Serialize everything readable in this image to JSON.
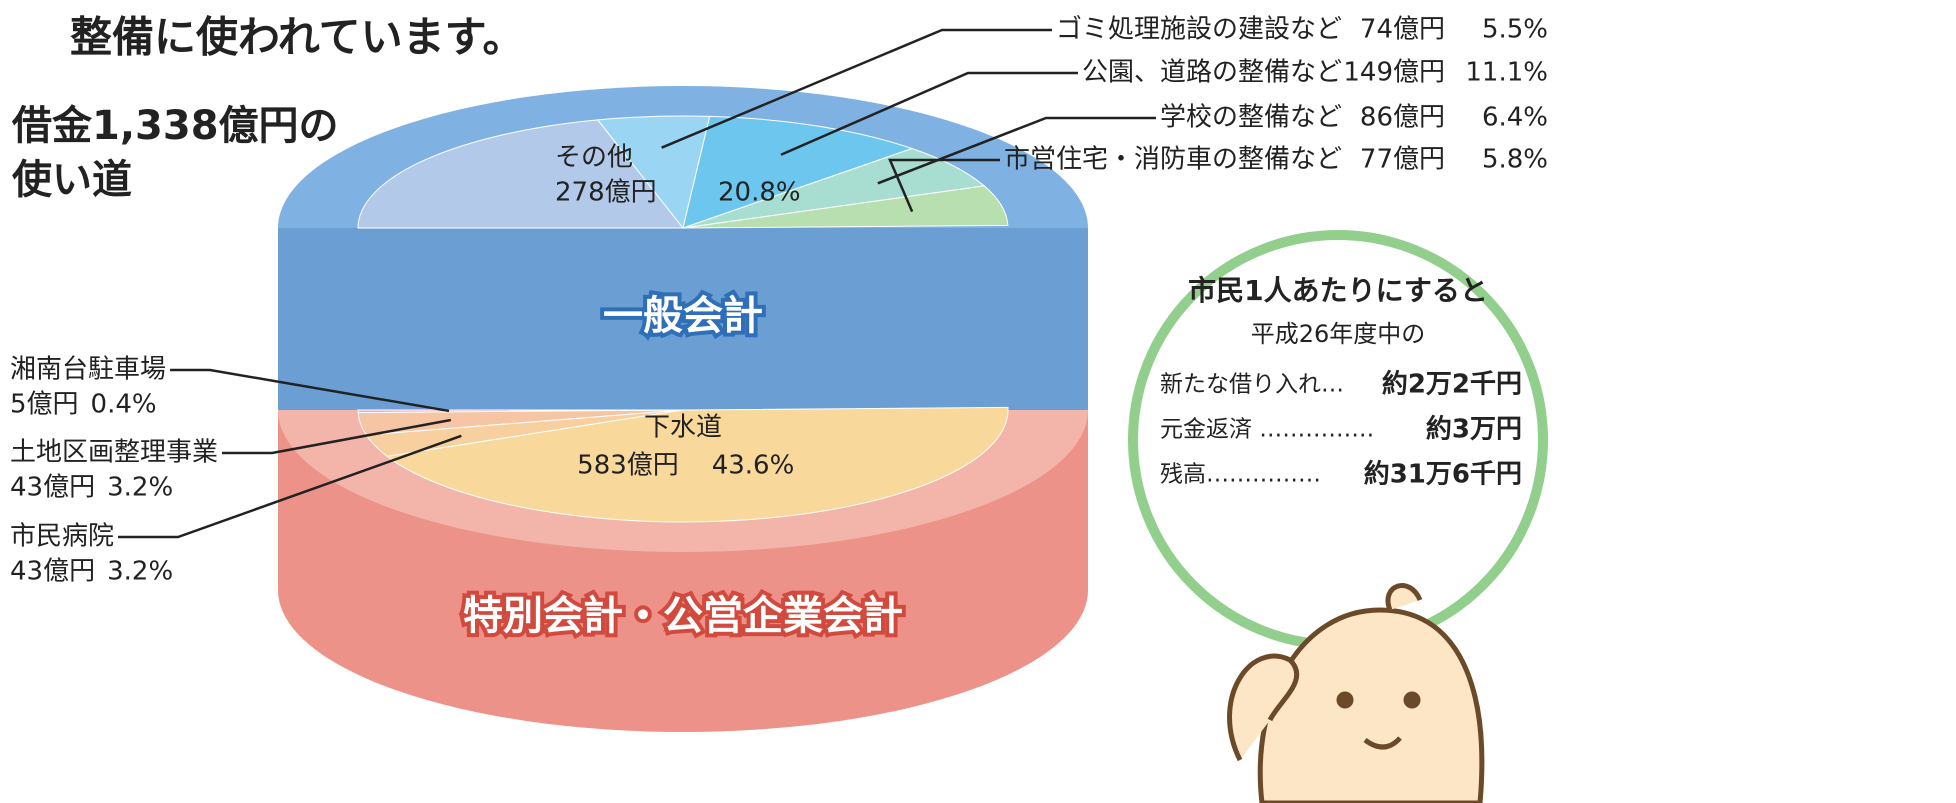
{
  "chart_data": {
    "type": "pie",
    "title": "整備に使われています。",
    "subtitle": [
      "借金1,338億円の",
      "使い道"
    ],
    "groups": [
      {
        "name": "一般会計",
        "color": "#6b9fd4",
        "top_color": "#7fb1e2",
        "labels": [
          "その他",
          "ゴミ処理施設の建設など",
          "公園、道路の整備など",
          "学校の整備など",
          "市営住宅・消防車の整備など"
        ],
        "values": [
          278,
          74,
          149,
          86,
          77
        ],
        "value_labels": [
          "278億円",
          "74億円",
          "149億円",
          "86億円",
          "77億円"
        ],
        "percents": [
          {
            "value": 20.8,
            "label": "20.8%"
          },
          {
            "value": 5.5,
            "label": "5.5%"
          },
          {
            "value": 11.1,
            "label": "11.1%"
          },
          {
            "value": 6.4,
            "label": "6.4%"
          },
          {
            "value": 5.8,
            "label": "5.8%"
          }
        ],
        "colors": [
          "#b3c9ea",
          "#9ad6f3",
          "#6cc6ee",
          "#a8ddd2",
          "#b8dfb0"
        ]
      },
      {
        "name": "特別会計・公営企業会計",
        "color": "#ec9288",
        "top_color": "#f3b4aa",
        "labels": [
          "湘南台駐車場",
          "土地区画整理事業",
          "市民病院",
          "下水道"
        ],
        "values": [
          5,
          43,
          43,
          583
        ],
        "value_labels": [
          "5億円",
          "43億円",
          "43億円",
          "583億円"
        ],
        "percents": [
          {
            "value": 0.4,
            "label": "0.4%"
          },
          {
            "value": 3.2,
            "label": "3.2%"
          },
          {
            "value": 3.2,
            "label": "3.2%"
          },
          {
            "value": 43.6,
            "label": "43.6%"
          }
        ],
        "colors": [
          "#f3a9c2",
          "#f6c6a4",
          "#f8cf9e",
          "#f9d89c"
        ]
      }
    ],
    "per_capita": {
      "title": "市民1人あたりにすると",
      "subtitle": "平成26年度中の",
      "rows": [
        {
          "label": "新たな借り入れ…",
          "value": "約2万2千円"
        },
        {
          "label": "元金返済 ……………",
          "value": "約3万円"
        },
        {
          "label": "残高……………",
          "value": "約31万6千円"
        }
      ]
    }
  }
}
